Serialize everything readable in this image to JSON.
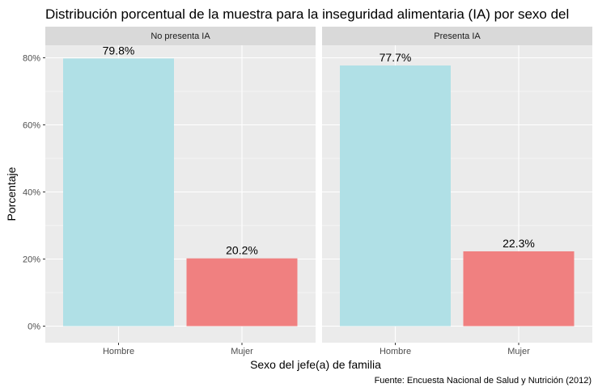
{
  "chart_data": {
    "type": "bar",
    "title": "Distribución porcentual de la muestra para la inseguridad alimentaria (IA) por sexo del",
    "xlabel": "Sexo del jefe(a) de familia",
    "ylabel": "Porcentaje",
    "caption": "Fuente: Encuesta Nacional de Salud y Nutrición (2012)",
    "ylim": [
      0,
      84
    ],
    "yticks": [
      0,
      20,
      40,
      60,
      80
    ],
    "ytick_labels": [
      "0%",
      "20%",
      "40%",
      "60%",
      "80%"
    ],
    "categories": [
      "Hombre",
      "Mujer"
    ],
    "category_colors": [
      "#b0e0e6",
      "#f08080"
    ],
    "panels": [
      {
        "name": "No presenta IA",
        "values": [
          79.8,
          20.2
        ],
        "labels": [
          "79.8%",
          "20.2%"
        ]
      },
      {
        "name": "Presenta IA",
        "values": [
          77.7,
          22.3
        ],
        "labels": [
          "77.7%",
          "22.3%"
        ]
      }
    ],
    "grid": true,
    "background": "#ebebeb",
    "strip_background": "#d9d9d9"
  }
}
